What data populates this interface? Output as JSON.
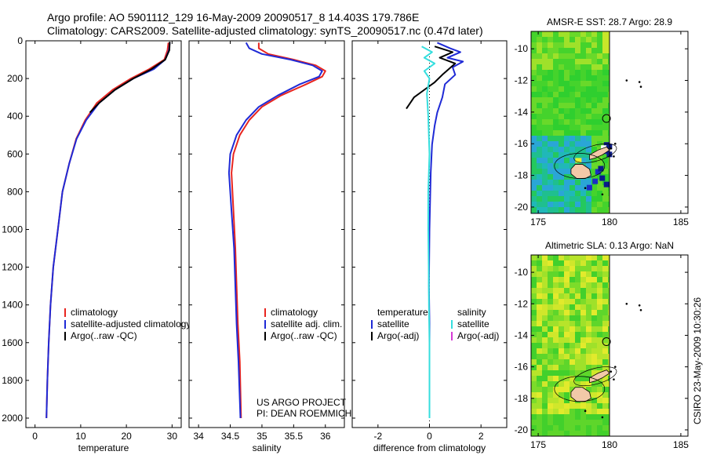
{
  "header": {
    "line1": "Argo profile: AO 5901112_129 16-May-2009 20090517_8 14.403S 179.786E",
    "line2": "Climatology: CARS2009. Satellite-adjusted climatology: synTS_20090517.nc (0.47d later)"
  },
  "side_label": "CSIRO 23-May-2009 10:30:26",
  "colors": {
    "red": "#e8251f",
    "blue": "#1f2ad6",
    "black": "#000000",
    "cyan": "#35dede",
    "magenta": "#d63ad6"
  },
  "chart_data": [
    {
      "type": "line",
      "id": "temperature",
      "xlabel": "temperature",
      "ylabel": "",
      "xlim": [
        -2,
        32
      ],
      "ylim": [
        0,
        2050
      ],
      "y_inverted": true,
      "xticks": [
        0,
        10,
        20,
        30
      ],
      "yticks": [
        0,
        200,
        400,
        600,
        800,
        1000,
        1200,
        1400,
        1600,
        1800,
        2000
      ],
      "legend": [
        "climatology",
        "satellite-adjusted climatology",
        "Argo(..raw -QC)"
      ],
      "series": [
        {
          "name": "climatology",
          "color": "red",
          "points": [
            [
              29.2,
              10
            ],
            [
              29.0,
              50
            ],
            [
              28.3,
              100
            ],
            [
              25,
              150
            ],
            [
              21,
              200
            ],
            [
              17,
              260
            ],
            [
              13.5,
              330
            ],
            [
              11,
              420
            ],
            [
              9,
              520
            ],
            [
              7.5,
              650
            ],
            [
              6,
              800
            ],
            [
              5,
              1000
            ],
            [
              4,
              1200
            ],
            [
              3.4,
              1400
            ],
            [
              3,
              1600
            ],
            [
              2.7,
              1800
            ],
            [
              2.5,
              2000
            ]
          ]
        },
        {
          "name": "satellite-adjusted climatology",
          "color": "blue",
          "points": [
            [
              29.5,
              10
            ],
            [
              29.3,
              50
            ],
            [
              28.5,
              100
            ],
            [
              26,
              150
            ],
            [
              21.5,
              200
            ],
            [
              17.5,
              260
            ],
            [
              14,
              330
            ],
            [
              11.2,
              420
            ],
            [
              9.1,
              520
            ],
            [
              7.5,
              650
            ],
            [
              6,
              800
            ],
            [
              5,
              1000
            ],
            [
              4,
              1200
            ],
            [
              3.4,
              1400
            ],
            [
              3,
              1600
            ],
            [
              2.7,
              1800
            ],
            [
              2.5,
              2000
            ]
          ]
        },
        {
          "name": "Argo(..raw -QC)",
          "color": "black",
          "points": [
            [
              29.5,
              5
            ],
            [
              29.4,
              50
            ],
            [
              28.5,
              100
            ],
            [
              25.5,
              150
            ],
            [
              21.5,
              200
            ],
            [
              17.5,
              260
            ],
            [
              14,
              330
            ],
            [
              12,
              380
            ]
          ]
        }
      ]
    },
    {
      "type": "line",
      "id": "salinity",
      "xlabel": "salinity",
      "ylabel": "",
      "xlim": [
        33.85,
        36.3
      ],
      "ylim": [
        0,
        2050
      ],
      "y_inverted": true,
      "xticks": [
        34,
        34.5,
        35,
        35.5,
        36
      ],
      "yticks": [
        0,
        200,
        400,
        600,
        800,
        1000,
        1200,
        1400,
        1600,
        1800,
        2000
      ],
      "legend": [
        "climatology",
        "satellite adj. clim.",
        "Argo(..raw -QC)"
      ],
      "annotation": [
        "US ARGO PROJECT",
        "PI: DEAN ROEMMICH"
      ],
      "series": [
        {
          "name": "climatology",
          "color": "red",
          "points": [
            [
              34.95,
              10
            ],
            [
              34.95,
              40
            ],
            [
              35.1,
              70
            ],
            [
              35.5,
              100
            ],
            [
              35.85,
              130
            ],
            [
              36.0,
              160
            ],
            [
              35.95,
              190
            ],
            [
              35.7,
              230
            ],
            [
              35.3,
              290
            ],
            [
              35.0,
              350
            ],
            [
              34.8,
              420
            ],
            [
              34.65,
              500
            ],
            [
              34.55,
              600
            ],
            [
              34.52,
              700
            ],
            [
              34.55,
              900
            ],
            [
              34.58,
              1100
            ],
            [
              34.6,
              1300
            ],
            [
              34.62,
              1500
            ],
            [
              34.65,
              1700
            ],
            [
              34.67,
              2000
            ]
          ]
        },
        {
          "name": "satellite adj. clim.",
          "color": "blue",
          "points": [
            [
              34.75,
              10
            ],
            [
              34.8,
              40
            ],
            [
              35.0,
              70
            ],
            [
              35.45,
              100
            ],
            [
              35.8,
              130
            ],
            [
              35.95,
              160
            ],
            [
              35.9,
              190
            ],
            [
              35.6,
              230
            ],
            [
              35.25,
              290
            ],
            [
              34.95,
              350
            ],
            [
              34.75,
              420
            ],
            [
              34.6,
              500
            ],
            [
              34.5,
              600
            ],
            [
              34.48,
              700
            ],
            [
              34.52,
              900
            ],
            [
              34.56,
              1100
            ],
            [
              34.58,
              1300
            ],
            [
              34.6,
              1500
            ],
            [
              34.63,
              1700
            ],
            [
              34.66,
              2000
            ]
          ]
        }
      ]
    },
    {
      "type": "line",
      "id": "difference",
      "xlabel": "difference from climatology",
      "ylabel": "",
      "xlim": [
        -3,
        3
      ],
      "ylim": [
        0,
        2050
      ],
      "y_inverted": true,
      "xticks": [
        -2,
        0,
        2
      ],
      "yticks": [
        0,
        200,
        400,
        600,
        800,
        1000,
        1200,
        1400,
        1600,
        1800,
        2000
      ],
      "legend_left": {
        "title": "temperature",
        "items": [
          "satellite",
          "Argo(-adj)"
        ]
      },
      "legend_right": {
        "title": "salinity",
        "items": [
          "satellite",
          "Argo(-adj)"
        ]
      },
      "series": [
        {
          "name": "temperature satellite",
          "color": "blue",
          "points": [
            [
              0.3,
              10
            ],
            [
              0.8,
              40
            ],
            [
              1.2,
              60
            ],
            [
              0.7,
              90
            ],
            [
              1.3,
              110
            ],
            [
              0.9,
              140
            ],
            [
              1.0,
              180
            ],
            [
              0.6,
              230
            ],
            [
              0.5,
              300
            ],
            [
              0.3,
              380
            ],
            [
              0.2,
              450
            ],
            [
              0.1,
              550
            ],
            [
              0.05,
              700
            ],
            [
              0,
              1000
            ],
            [
              -0.02,
              1300
            ],
            [
              0,
              1500
            ],
            [
              0,
              1700
            ],
            [
              0,
              2000
            ]
          ]
        },
        {
          "name": "temperature Argo(-adj)",
          "color": "black",
          "points": [
            [
              0.2,
              30
            ],
            [
              0.9,
              60
            ],
            [
              0.4,
              90
            ],
            [
              1.0,
              120
            ],
            [
              0.5,
              180
            ],
            [
              0.2,
              220
            ],
            [
              -0.2,
              260
            ],
            [
              -0.6,
              300
            ],
            [
              -0.9,
              360
            ]
          ]
        },
        {
          "name": "salinity satellite",
          "color": "cyan",
          "points": [
            [
              -0.3,
              30
            ],
            [
              0.1,
              60
            ],
            [
              -0.2,
              90
            ],
            [
              0.2,
              120
            ],
            [
              -0.2,
              160
            ],
            [
              0.0,
              200
            ],
            [
              -0.1,
              280
            ],
            [
              -0.05,
              400
            ],
            [
              0,
              600
            ],
            [
              -0.05,
              800
            ],
            [
              -0.05,
              1000
            ],
            [
              -0.03,
              1200
            ],
            [
              -0.02,
              1400
            ],
            [
              0,
              1600
            ],
            [
              0,
              1800
            ],
            [
              0,
              2000
            ]
          ]
        }
      ]
    },
    {
      "type": "heatmap",
      "id": "amsre_sst",
      "title": "AMSR-E SST: 28.7 Argo: 28.9",
      "xlim": [
        174.5,
        185.5
      ],
      "ylim": [
        -20.4,
        -8.9
      ],
      "xticks": [
        175,
        180,
        185
      ],
      "yticks": [
        -10,
        -12,
        -14,
        -16,
        -18,
        -20
      ],
      "data_xmax": 180,
      "argo_position": {
        "lon": 179.786,
        "lat": -14.403
      }
    },
    {
      "type": "heatmap",
      "id": "altimetric_sla",
      "title": "Altimetric SLA: 0.13 Argo: NaN",
      "xlim": [
        174.5,
        185.5
      ],
      "ylim": [
        -20.4,
        -8.9
      ],
      "xticks": [
        175,
        180,
        185
      ],
      "yticks": [
        -10,
        -12,
        -14,
        -16,
        -18,
        -20
      ],
      "data_xmax": 180,
      "argo_position": {
        "lon": 179.786,
        "lat": -14.403
      }
    }
  ]
}
